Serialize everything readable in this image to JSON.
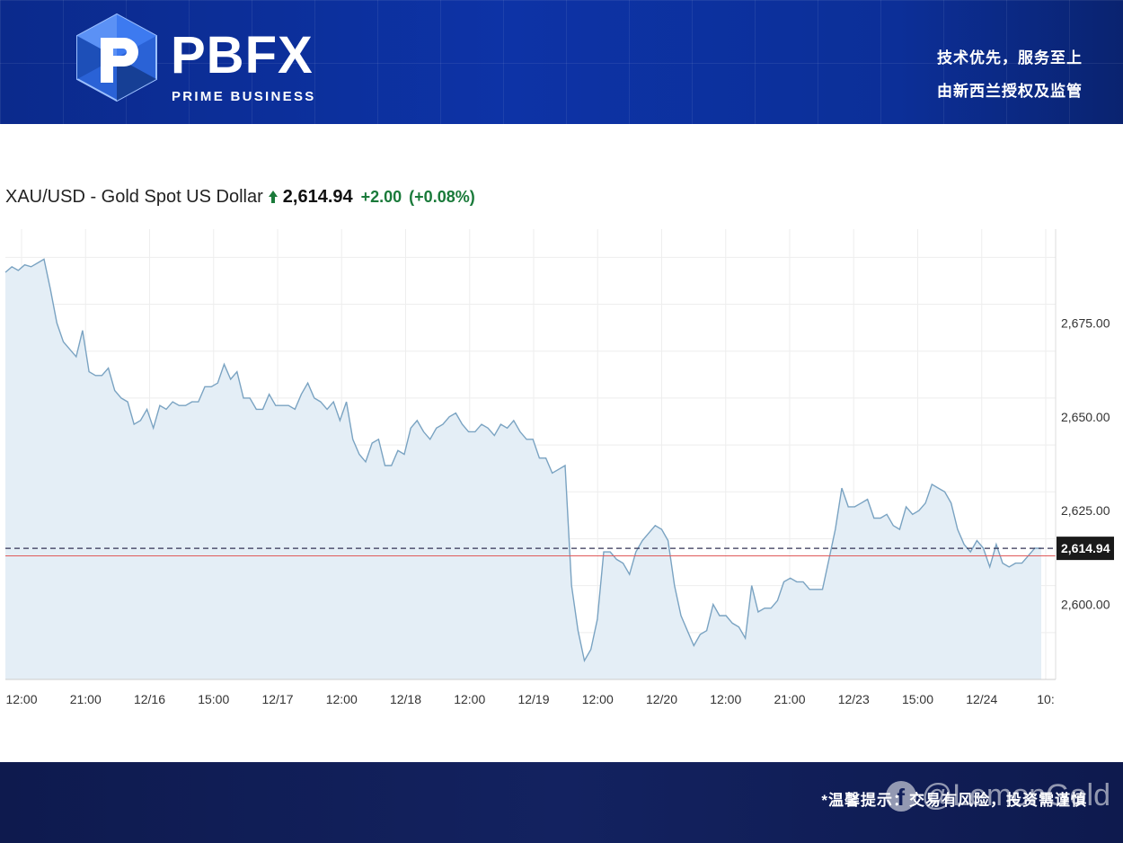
{
  "header": {
    "logo_word": "PBFX",
    "logo_sub": "PRIME BUSINESS",
    "slogan_line1": "技术优先，服务至上",
    "slogan_line2": "由新西兰授权及监管"
  },
  "quote": {
    "title": "XAU/USD - Gold Spot US Dollar",
    "price": "2,614.94",
    "change": "+2.00",
    "change_pct": "(+0.08%)",
    "direction_icon": "arrow-up-icon"
  },
  "colors": {
    "positive": "#1a7a3a",
    "line": "#7aa3c2",
    "area": "#e4eef6",
    "ref_line": "#e05a5a",
    "last_price_bg": "#1a1a1a"
  },
  "footer": {
    "note": "*温馨提示：交易有风险，投资需谨慎",
    "watermark_icon": "facebook-icon",
    "watermark": "@LemonGold"
  },
  "chart_data": {
    "type": "area",
    "title": "XAU/USD - Gold Spot US Dollar",
    "ylim": [
      2580,
      2700
    ],
    "y_ticks": [
      2600,
      2625,
      2650,
      2675
    ],
    "y_tick_labels": [
      "2,600.00",
      "2,625.00",
      "2,650.00",
      "2,675.00"
    ],
    "x_tick_labels": [
      "12:00",
      "21:00",
      "12/16",
      "15:00",
      "12/17",
      "12:00",
      "12/18",
      "12:00",
      "12/19",
      "12:00",
      "12/20",
      "12:00",
      "21:00",
      "12/23",
      "15:00",
      "12/24",
      "10:"
    ],
    "last_price": 2614.94,
    "last_price_label": "2,614.94",
    "prev_close": 2612.94,
    "grid": true,
    "values": [
      2688.5,
      2690,
      2689,
      2690.5,
      2690,
      2691,
      2692,
      2684,
      2675,
      2670,
      2668,
      2666,
      2673,
      2662,
      2661,
      2661,
      2663,
      2657,
      2655,
      2654,
      2648,
      2649,
      2652,
      2647,
      2653,
      2652,
      2654,
      2653,
      2653,
      2654,
      2654,
      2658,
      2658,
      2659,
      2664,
      2660,
      2662,
      2655,
      2655,
      2652,
      2652,
      2656,
      2653,
      2653,
      2653,
      2652,
      2656,
      2659,
      2655,
      2654,
      2652,
      2654,
      2649,
      2654,
      2644,
      2640,
      2638,
      2643,
      2644,
      2637,
      2637,
      2641,
      2640,
      2647,
      2649,
      2646,
      2644,
      2647,
      2648,
      2650,
      2651,
      2648,
      2646,
      2646,
      2648,
      2647,
      2645,
      2648,
      2647,
      2649,
      2646,
      2644,
      2644,
      2639,
      2639,
      2635,
      2636,
      2637,
      2605,
      2593,
      2585,
      2588,
      2596,
      2614,
      2614,
      2612,
      2611,
      2608,
      2614,
      2617,
      2619,
      2621,
      2620,
      2617,
      2605,
      2597,
      2593,
      2589,
      2592,
      2593,
      2600,
      2597,
      2597,
      2595,
      2594,
      2591,
      2605,
      2598,
      2599,
      2599,
      2601,
      2606,
      2607,
      2606,
      2606,
      2604,
      2604,
      2604,
      2612,
      2620,
      2631,
      2626,
      2626,
      2627,
      2628,
      2623,
      2623,
      2624,
      2621,
      2620,
      2626,
      2624,
      2625,
      2627,
      2632,
      2631,
      2630,
      2627,
      2620,
      2616,
      2614,
      2617,
      2615,
      2610,
      2616,
      2611,
      2610,
      2611,
      2611,
      2613,
      2615,
      2614.94
    ]
  }
}
